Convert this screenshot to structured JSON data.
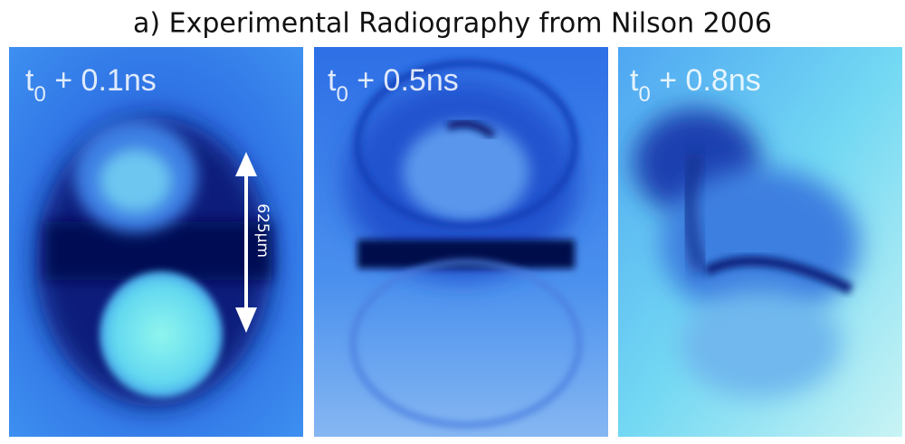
{
  "title": "a) Experimental Radiography from Nilson 2006",
  "panels": [
    {
      "time": "t",
      "subscript": "0",
      "offset": " + 0.1ns"
    },
    {
      "time": "t",
      "subscript": "0",
      "offset": " + 0.5ns"
    },
    {
      "time": "t",
      "subscript": "0",
      "offset": " + 0.8ns"
    }
  ],
  "scale_label": "625μm"
}
